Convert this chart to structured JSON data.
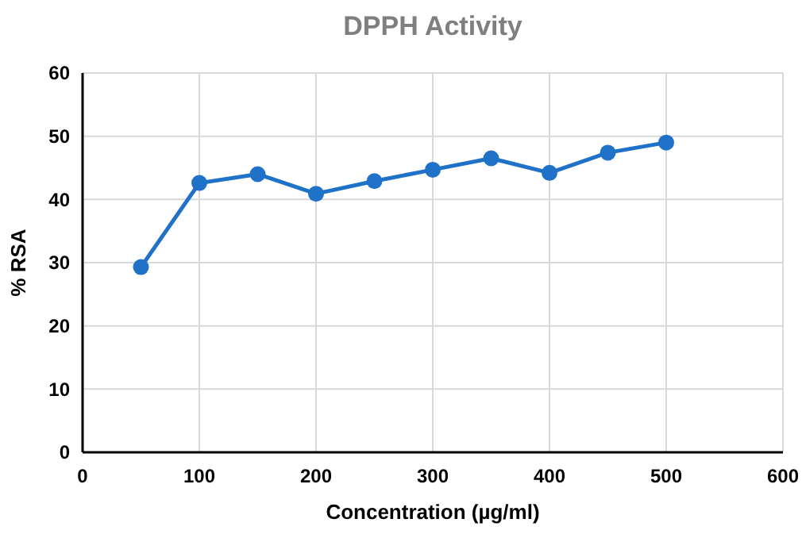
{
  "chart_data": {
    "type": "line",
    "title": "DPPH Activity",
    "xlabel": "Concentration (µg/ml)",
    "ylabel": "% RSA",
    "x": [
      50,
      100,
      150,
      200,
      250,
      300,
      350,
      400,
      450,
      500
    ],
    "series": [
      {
        "color": "#1f72c8",
        "values": [
          29.3,
          42.6,
          44.0,
          40.9,
          42.9,
          44.7,
          46.5,
          44.2,
          47.4,
          49.0
        ]
      }
    ],
    "xlim": [
      0,
      600
    ],
    "xticks": [
      0,
      100,
      200,
      300,
      400,
      500,
      600
    ],
    "ylim": [
      0,
      60
    ],
    "yticks": [
      0,
      10,
      20,
      30,
      40,
      50,
      60
    ],
    "grid": true,
    "marker": "circle",
    "line_style": "solid"
  }
}
